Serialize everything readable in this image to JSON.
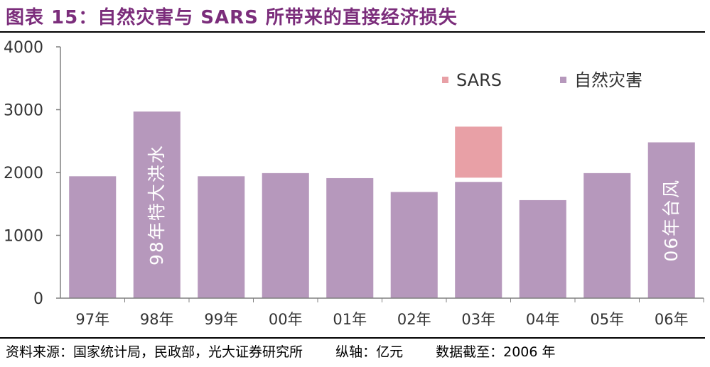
{
  "title": "图表 15：自然灾害与 SARS 所带来的直接经济损失",
  "footer": {
    "source": "资料来源：国家统计局，民政部，光大证券研究所",
    "unit": "纵轴：亿元",
    "cutoff": "数据截至：2006 年"
  },
  "colors": {
    "title": "#7B2D7B",
    "natural": "#B698BC",
    "sars": "#E8A0A6"
  },
  "chart_data": {
    "type": "bar",
    "stacked": true,
    "categories": [
      "97年",
      "98年",
      "99年",
      "00年",
      "01年",
      "02年",
      "03年",
      "04年",
      "05年",
      "06年"
    ],
    "series": [
      {
        "name": "自然灾害",
        "values": [
          1940,
          2970,
          1940,
          1990,
          1910,
          1690,
          1850,
          1560,
          1990,
          2480
        ]
      },
      {
        "name": "SARS",
        "values": [
          0,
          0,
          0,
          0,
          0,
          0,
          880,
          0,
          0,
          0
        ]
      }
    ],
    "ylim": [
      0,
      4000
    ],
    "yticks": [
      0,
      1000,
      2000,
      3000,
      4000
    ],
    "grid": false,
    "legend": "top-right",
    "annotations": [
      {
        "category": "98年",
        "text": "98年特大洪水"
      },
      {
        "category": "06年",
        "text": "06年台风"
      }
    ]
  }
}
